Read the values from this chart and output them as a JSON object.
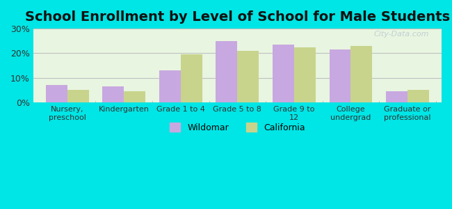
{
  "title": "School Enrollment by Level of School for Male Students",
  "categories": [
    "Nursery,\npreschool",
    "Kindergarten",
    "Grade 1 to 4",
    "Grade 5 to 8",
    "Grade 9 to\n12",
    "College\nundergrad",
    "Graduate or\nprofessional"
  ],
  "wildomar": [
    7.0,
    6.5,
    13.0,
    25.0,
    23.5,
    21.5,
    4.5
  ],
  "california": [
    5.0,
    4.5,
    19.5,
    21.0,
    22.5,
    23.0,
    5.0
  ],
  "wildomar_color": "#c8a8e0",
  "california_color": "#c8d48c",
  "background_outer": "#00e5e5",
  "background_inner_top": "#e8f5e0",
  "background_inner_bottom": "#f5fff5",
  "ylim": [
    0,
    30
  ],
  "yticks": [
    0,
    10,
    20,
    30
  ],
  "ytick_labels": [
    "0%",
    "10%",
    "20%",
    "30%"
  ],
  "legend_wildomar": "Wildomar",
  "legend_california": "California",
  "title_fontsize": 14,
  "bar_width": 0.38,
  "grid_color": "#c0c0c0"
}
